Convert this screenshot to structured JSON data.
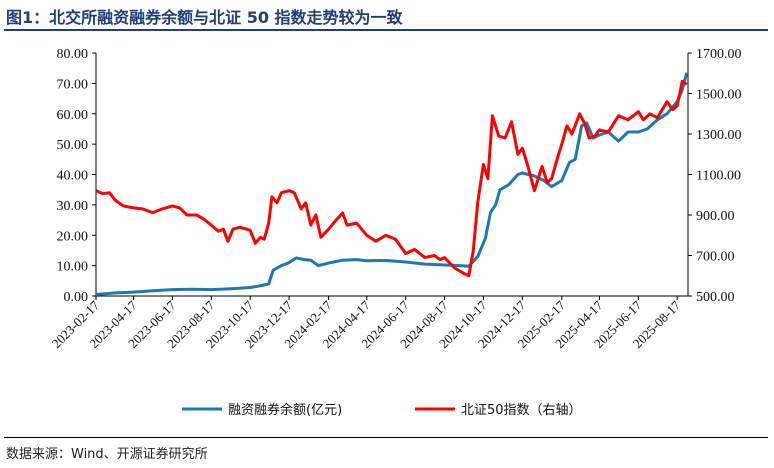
{
  "title": "图1：北交所融资融券余额与北证 50 指数走势较为一致",
  "source": "数据来源：Wind、开源证券研究所",
  "colors": {
    "title": "#1f3e7a",
    "margin_balance": "#1f77b4",
    "bse50": "#ff0000"
  },
  "chart_data": {
    "type": "line",
    "x_labels": [
      "2023-02-17",
      "2023-04-17",
      "2023-06-17",
      "2023-08-17",
      "2023-10-17",
      "2023-12-17",
      "2024-02-17",
      "2024-04-17",
      "2024-06-17",
      "2024-08-17",
      "2024-10-17",
      "2024-12-17",
      "2025-02-17",
      "2025-04-17",
      "2025-06-17",
      "2025-08-17"
    ],
    "x_range": [
      "2023-02-17",
      "2025-09-03"
    ],
    "left_axis": {
      "ylim": [
        0,
        80
      ],
      "ticks": [
        "0.00",
        "10.00",
        "20.00",
        "30.00",
        "40.00",
        "50.00",
        "60.00",
        "70.00",
        "80.00"
      ]
    },
    "right_axis": {
      "ylim": [
        500,
        1700
      ],
      "ticks": [
        "500.00",
        "700.00",
        "900.00",
        "1100.00",
        "1300.00",
        "1500.00",
        "1700.00"
      ]
    },
    "grid": false,
    "legend_position": "bottom",
    "series": [
      {
        "name": "融资融券余额(亿元)",
        "axis": "left",
        "points": [
          [
            "2023-02-17",
            0.5
          ],
          [
            "2023-03-17",
            1.0
          ],
          [
            "2023-04-17",
            1.3
          ],
          [
            "2023-05-17",
            1.7
          ],
          [
            "2023-06-17",
            2.1
          ],
          [
            "2023-07-17",
            2.2
          ],
          [
            "2023-08-17",
            2.1
          ],
          [
            "2023-09-17",
            2.4
          ],
          [
            "2023-10-17",
            2.8
          ],
          [
            "2023-10-31",
            3.3
          ],
          [
            "2023-11-15",
            4.0
          ],
          [
            "2023-11-22",
            8.5
          ],
          [
            "2023-12-05",
            10.0
          ],
          [
            "2023-12-17",
            11.0
          ],
          [
            "2023-12-28",
            12.5
          ],
          [
            "2024-01-10",
            12.0
          ],
          [
            "2024-01-20",
            11.8
          ],
          [
            "2024-02-01",
            10.0
          ],
          [
            "2024-02-20",
            11.0
          ],
          [
            "2024-03-10",
            11.8
          ],
          [
            "2024-04-01",
            12.0
          ],
          [
            "2024-04-17",
            11.6
          ],
          [
            "2024-05-17",
            11.7
          ],
          [
            "2024-06-17",
            11.2
          ],
          [
            "2024-07-17",
            10.5
          ],
          [
            "2024-08-17",
            10.2
          ],
          [
            "2024-09-10",
            10.0
          ],
          [
            "2024-09-24",
            9.8
          ],
          [
            "2024-10-08",
            13.0
          ],
          [
            "2024-10-20",
            19.0
          ],
          [
            "2024-10-28",
            27.5
          ],
          [
            "2024-11-05",
            30.0
          ],
          [
            "2024-11-12",
            35.0
          ],
          [
            "2024-11-25",
            36.5
          ],
          [
            "2024-12-10",
            40.0
          ],
          [
            "2024-12-17",
            40.5
          ],
          [
            "2025-01-05",
            39.5
          ],
          [
            "2025-01-20",
            38.0
          ],
          [
            "2025-02-01",
            36.0
          ],
          [
            "2025-02-17",
            38.0
          ],
          [
            "2025-03-01",
            44.0
          ],
          [
            "2025-03-10",
            45.0
          ],
          [
            "2025-03-20",
            56.0
          ],
          [
            "2025-03-28",
            57.0
          ],
          [
            "2025-04-07",
            52.0
          ],
          [
            "2025-04-17",
            53.0
          ],
          [
            "2025-05-01",
            54.0
          ],
          [
            "2025-05-17",
            51.0
          ],
          [
            "2025-06-01",
            54.0
          ],
          [
            "2025-06-17",
            54.0
          ],
          [
            "2025-07-01",
            55.0
          ],
          [
            "2025-07-17",
            58.0
          ],
          [
            "2025-08-01",
            60.0
          ],
          [
            "2025-08-17",
            64.0
          ],
          [
            "2025-08-25",
            68.0
          ],
          [
            "2025-09-01",
            73.5
          ]
        ]
      },
      {
        "name": "北证50指数（右轴）",
        "axis": "right",
        "points": [
          [
            "2023-02-17",
            1020
          ],
          [
            "2023-02-28",
            1005
          ],
          [
            "2023-03-10",
            1010
          ],
          [
            "2023-03-20",
            970
          ],
          [
            "2023-04-01",
            945
          ],
          [
            "2023-04-17",
            935
          ],
          [
            "2023-05-01",
            930
          ],
          [
            "2023-05-17",
            912
          ],
          [
            "2023-06-01",
            930
          ],
          [
            "2023-06-17",
            945
          ],
          [
            "2023-06-28",
            935
          ],
          [
            "2023-07-10",
            900
          ],
          [
            "2023-07-25",
            900
          ],
          [
            "2023-08-05",
            880
          ],
          [
            "2023-08-17",
            850
          ],
          [
            "2023-08-28",
            820
          ],
          [
            "2023-09-05",
            830
          ],
          [
            "2023-09-12",
            770
          ],
          [
            "2023-09-20",
            830
          ],
          [
            "2023-10-01",
            840
          ],
          [
            "2023-10-17",
            825
          ],
          [
            "2023-10-25",
            760
          ],
          [
            "2023-11-02",
            790
          ],
          [
            "2023-11-08",
            780
          ],
          [
            "2023-11-15",
            860
          ],
          [
            "2023-11-20",
            990
          ],
          [
            "2023-11-28",
            960
          ],
          [
            "2023-12-05",
            1010
          ],
          [
            "2023-12-17",
            1020
          ],
          [
            "2023-12-25",
            1010
          ],
          [
            "2024-01-05",
            930
          ],
          [
            "2024-01-12",
            960
          ],
          [
            "2024-01-20",
            850
          ],
          [
            "2024-01-28",
            900
          ],
          [
            "2024-02-05",
            790
          ],
          [
            "2024-02-17",
            830
          ],
          [
            "2024-03-01",
            880
          ],
          [
            "2024-03-10",
            910
          ],
          [
            "2024-03-17",
            850
          ],
          [
            "2024-04-01",
            860
          ],
          [
            "2024-04-17",
            800
          ],
          [
            "2024-05-01",
            770
          ],
          [
            "2024-05-17",
            800
          ],
          [
            "2024-06-01",
            780
          ],
          [
            "2024-06-17",
            710
          ],
          [
            "2024-07-01",
            730
          ],
          [
            "2024-07-17",
            690
          ],
          [
            "2024-08-01",
            700
          ],
          [
            "2024-08-10",
            680
          ],
          [
            "2024-08-17",
            690
          ],
          [
            "2024-09-01",
            640
          ],
          [
            "2024-09-17",
            610
          ],
          [
            "2024-09-24",
            600
          ],
          [
            "2024-10-01",
            720
          ],
          [
            "2024-10-08",
            960
          ],
          [
            "2024-10-17",
            1150
          ],
          [
            "2024-10-24",
            1080
          ],
          [
            "2024-10-31",
            1390
          ],
          [
            "2024-11-10",
            1290
          ],
          [
            "2024-11-20",
            1280
          ],
          [
            "2024-11-30",
            1360
          ],
          [
            "2024-12-10",
            1200
          ],
          [
            "2024-12-17",
            1230
          ],
          [
            "2024-12-25",
            1150
          ],
          [
            "2025-01-05",
            1020
          ],
          [
            "2025-01-17",
            1140
          ],
          [
            "2025-01-25",
            1060
          ],
          [
            "2025-02-01",
            1080
          ],
          [
            "2025-02-10",
            1180
          ],
          [
            "2025-02-17",
            1250
          ],
          [
            "2025-02-25",
            1340
          ],
          [
            "2025-03-05",
            1300
          ],
          [
            "2025-03-17",
            1400
          ],
          [
            "2025-03-25",
            1350
          ],
          [
            "2025-04-01",
            1280
          ],
          [
            "2025-04-10",
            1290
          ],
          [
            "2025-04-17",
            1320
          ],
          [
            "2025-05-01",
            1310
          ],
          [
            "2025-05-17",
            1390
          ],
          [
            "2025-06-01",
            1370
          ],
          [
            "2025-06-17",
            1410
          ],
          [
            "2025-06-25",
            1370
          ],
          [
            "2025-07-05",
            1400
          ],
          [
            "2025-07-17",
            1380
          ],
          [
            "2025-08-01",
            1460
          ],
          [
            "2025-08-10",
            1420
          ],
          [
            "2025-08-17",
            1440
          ],
          [
            "2025-08-25",
            1560
          ],
          [
            "2025-09-01",
            1545
          ]
        ]
      }
    ]
  }
}
